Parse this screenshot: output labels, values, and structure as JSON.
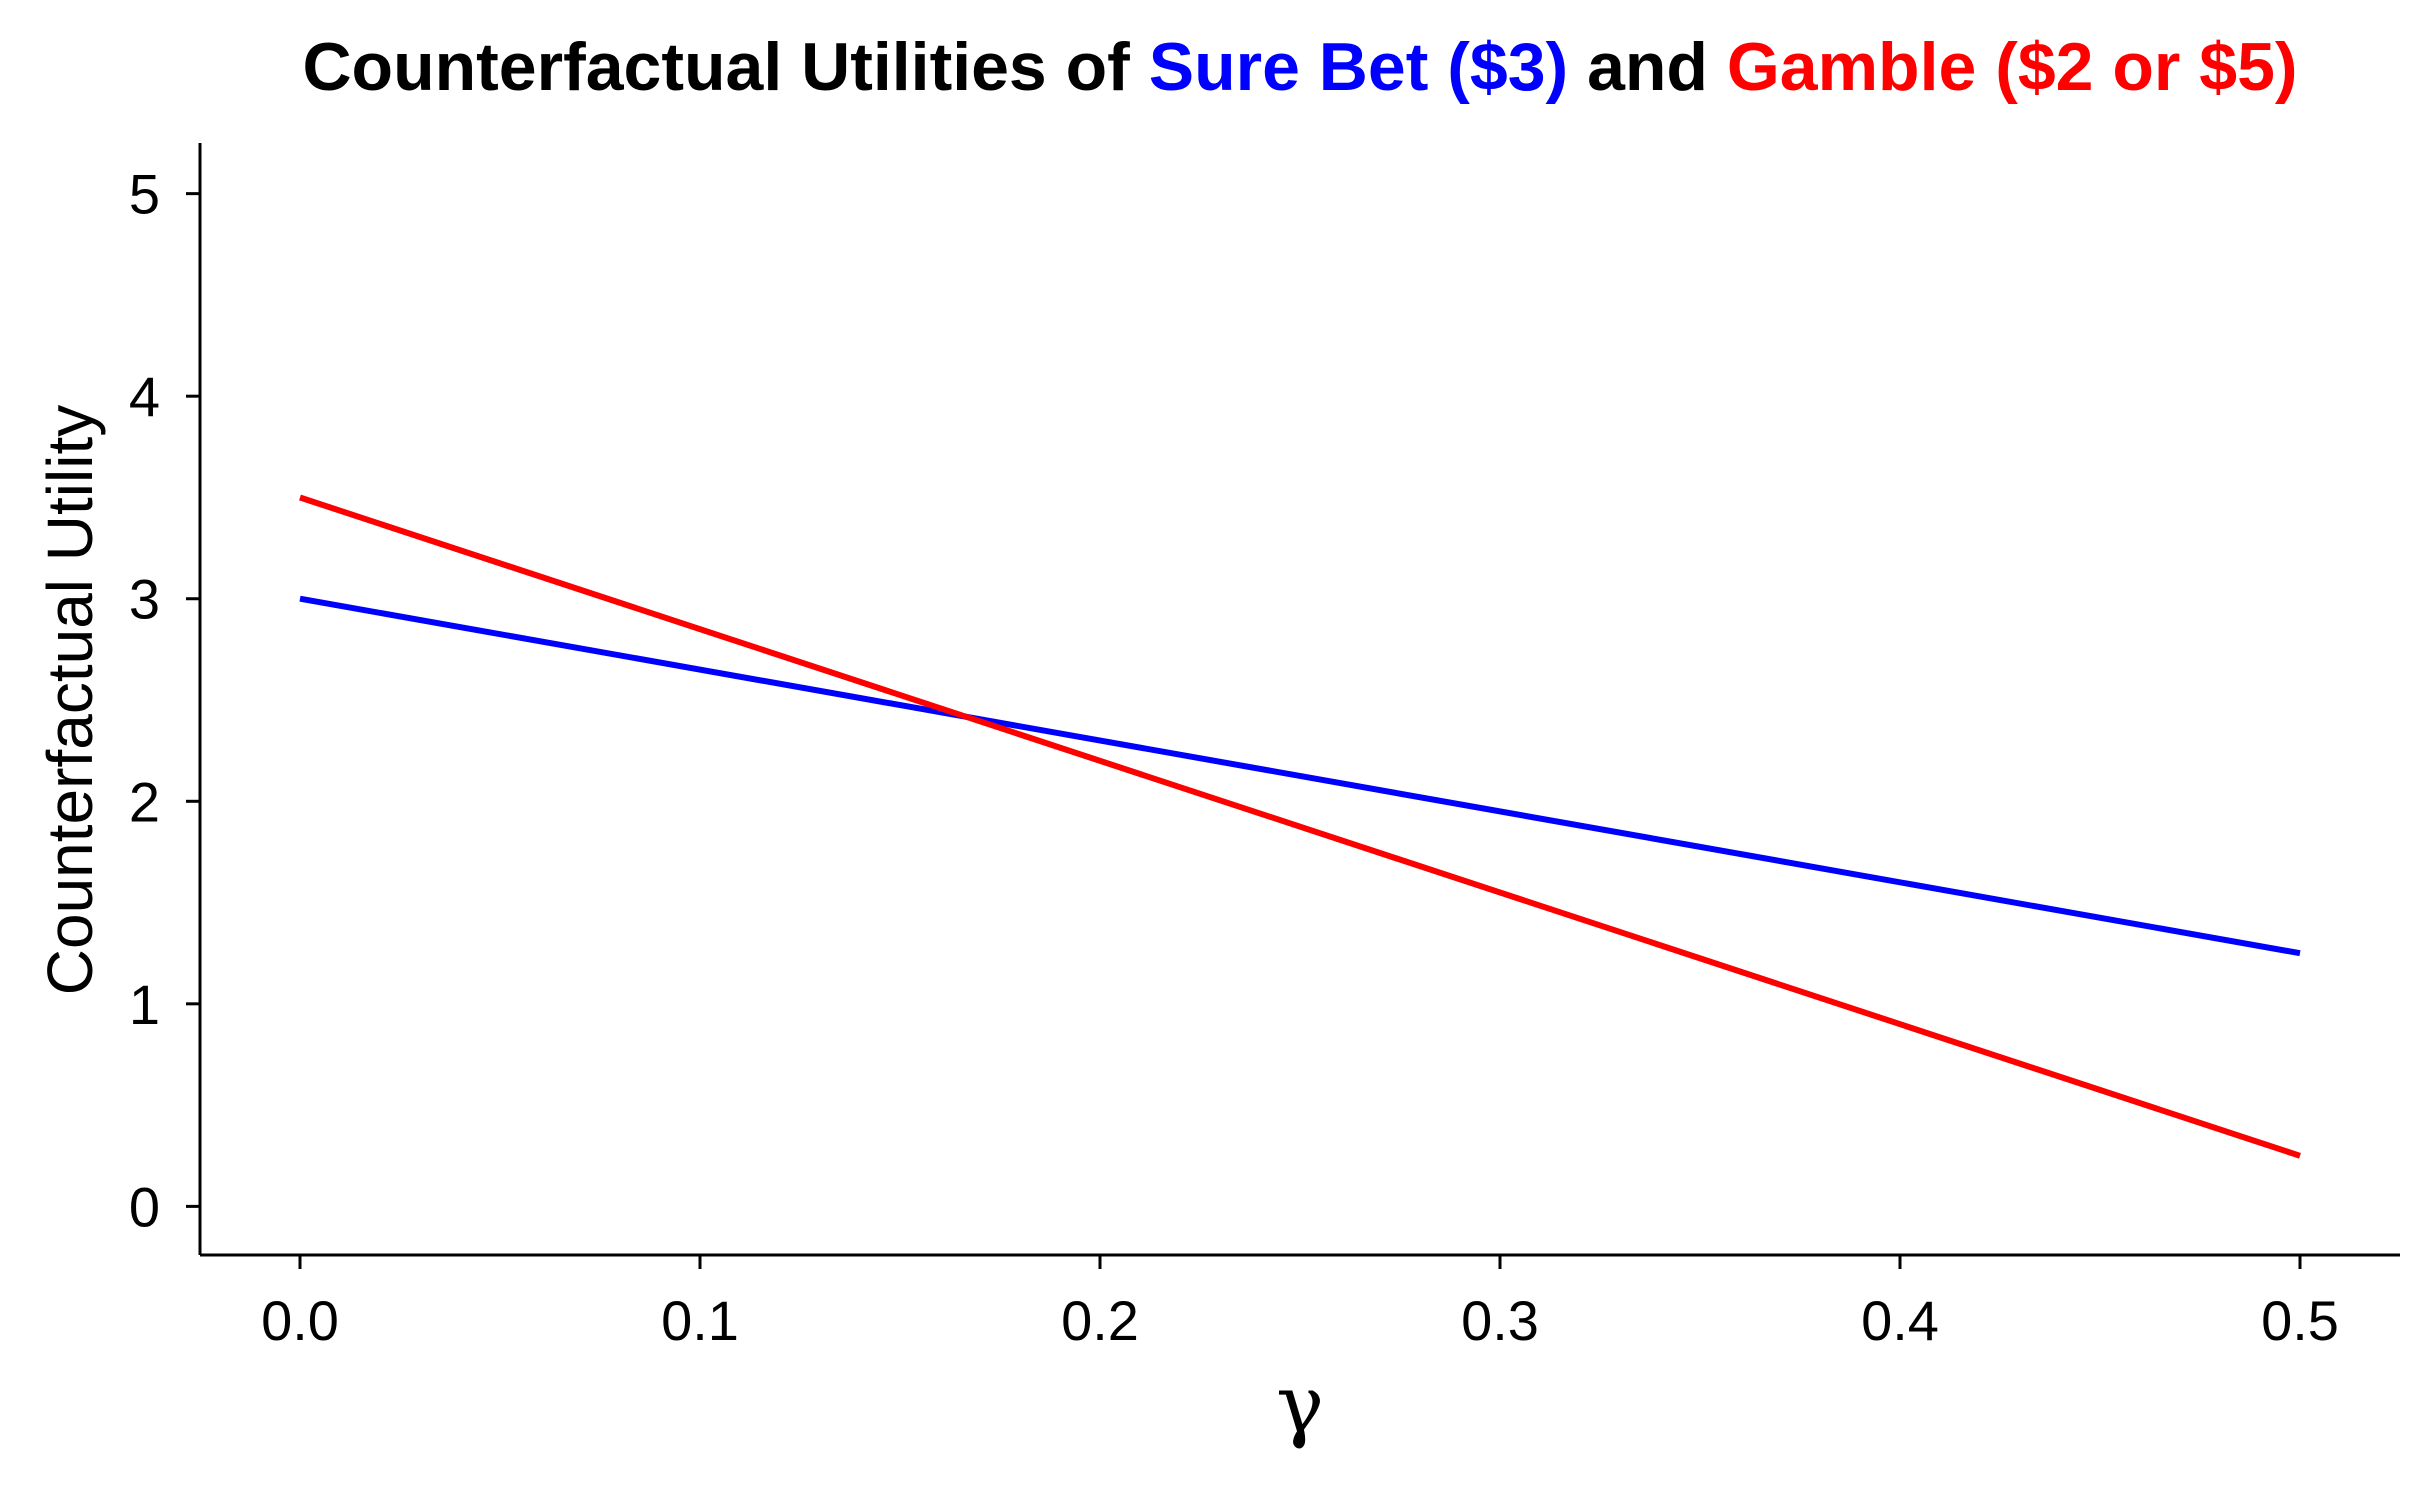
{
  "chart_data": {
    "type": "line",
    "title": {
      "parts": [
        {
          "text": "Counterfactual Utilities of ",
          "color": "#000000"
        },
        {
          "text": "Sure Bet ($3)",
          "color": "#0000ff"
        },
        {
          "text": " and ",
          "color": "#000000"
        },
        {
          "text": "Gamble ($2 or $5)",
          "color": "#ff0000"
        }
      ]
    },
    "xlabel": "γ",
    "ylabel": "Counterfactual Utility",
    "xlim": [
      -0.025,
      0.525
    ],
    "ylim": [
      -0.24,
      5.25
    ],
    "x_ticks": [
      0.0,
      0.1,
      0.2,
      0.3,
      0.4,
      0.5
    ],
    "x_tick_labels": [
      "0.0",
      "0.1",
      "0.2",
      "0.3",
      "0.4",
      "0.5"
    ],
    "y_ticks": [
      0,
      1,
      2,
      3,
      4,
      5
    ],
    "y_tick_labels": [
      "0",
      "1",
      "2",
      "3",
      "4",
      "5"
    ],
    "grid": false,
    "series": [
      {
        "color": "#0000ff",
        "x": [
          0.0,
          0.5
        ],
        "y": [
          3.0,
          1.25
        ]
      },
      {
        "color": "#ff0000",
        "x": [
          0.0,
          0.5
        ],
        "y": [
          3.5,
          0.25
        ]
      }
    ]
  }
}
